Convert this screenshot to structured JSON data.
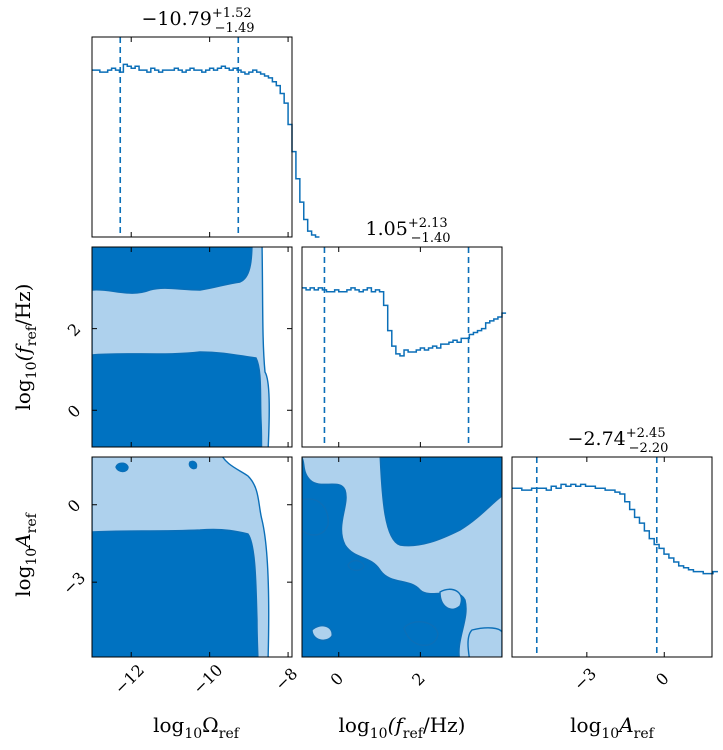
{
  "chart_data": {
    "type": "corner",
    "parameters": [
      {
        "key": "omega",
        "label": "log10Ωref",
        "label_base": "log",
        "label_sub": "10",
        "label_main": "Ω",
        "label_main_sub": "ref",
        "range": [
          -13,
          -7.9
        ],
        "ticks": [
          -12,
          -10,
          -8
        ]
      },
      {
        "key": "fref",
        "label": "log10(fref/Hz)",
        "label_base": "log",
        "label_sub": "10",
        "label_main": "(f",
        "label_main_sub": "ref",
        "label_tail": "/Hz)",
        "range": [
          -0.9,
          4.0
        ],
        "ticks": [
          0,
          2
        ]
      },
      {
        "key": "aref",
        "label": "log10Aref",
        "label_base": "log",
        "label_sub": "10",
        "label_main": "A",
        "label_main_sub": "ref",
        "range": [
          -5.9,
          1.85
        ],
        "ticks": [
          -3,
          0
        ]
      }
    ],
    "diag_titles": [
      {
        "median": "−10.79",
        "plus": "+1.52",
        "minus": "−1.49"
      },
      {
        "median": "1.05",
        "plus": "+2.13",
        "minus": "−1.40"
      },
      {
        "median": "−2.74",
        "plus": "+2.45",
        "minus": "−2.20"
      }
    ],
    "quantiles": [
      [
        -12.28,
        -9.27
      ],
      [
        -0.35,
        3.18
      ],
      [
        -4.94,
        -0.29
      ]
    ],
    "histograms": [
      {
        "start": -13,
        "step": 0.1,
        "values": [
          0.86,
          0.86,
          0.85,
          0.85,
          0.86,
          0.87,
          0.86,
          0.85,
          0.89,
          0.88,
          0.87,
          0.88,
          0.86,
          0.86,
          0.85,
          0.87,
          0.86,
          0.85,
          0.86,
          0.86,
          0.86,
          0.87,
          0.86,
          0.85,
          0.86,
          0.87,
          0.86,
          0.86,
          0.85,
          0.86,
          0.87,
          0.86,
          0.87,
          0.88,
          0.87,
          0.86,
          0.87,
          0.86,
          0.85,
          0.84,
          0.85,
          0.86,
          0.85,
          0.84,
          0.83,
          0.82,
          0.8,
          0.78,
          0.74,
          0.69,
          0.58,
          0.44,
          0.3,
          0.18,
          0.09,
          0.03,
          0.01,
          0.0
        ]
      },
      {
        "start": -0.9,
        "step": 0.1,
        "values": [
          0.82,
          0.81,
          0.82,
          0.81,
          0.82,
          0.81,
          0.8,
          0.8,
          0.81,
          0.8,
          0.8,
          0.81,
          0.82,
          0.81,
          0.8,
          0.81,
          0.82,
          0.8,
          0.81,
          0.8,
          0.73,
          0.6,
          0.52,
          0.48,
          0.47,
          0.5,
          0.49,
          0.49,
          0.5,
          0.51,
          0.5,
          0.51,
          0.52,
          0.51,
          0.53,
          0.53,
          0.54,
          0.55,
          0.54,
          0.56,
          0.56,
          0.58,
          0.59,
          0.6,
          0.61,
          0.64,
          0.65,
          0.66,
          0.67,
          0.69
        ]
      },
      {
        "start": -5.9,
        "step": 0.19,
        "values": [
          0.87,
          0.87,
          0.86,
          0.86,
          0.87,
          0.87,
          0.87,
          0.86,
          0.88,
          0.87,
          0.89,
          0.88,
          0.89,
          0.88,
          0.89,
          0.88,
          0.88,
          0.87,
          0.87,
          0.86,
          0.86,
          0.85,
          0.84,
          0.8,
          0.76,
          0.72,
          0.69,
          0.65,
          0.61,
          0.58,
          0.56,
          0.53,
          0.51,
          0.49,
          0.47,
          0.46,
          0.45,
          0.44,
          0.44,
          0.43,
          0.43,
          0.44
        ]
      }
    ],
    "contour_levels": [
      "inner",
      "outer"
    ],
    "colors": {
      "dark": "#0072c1",
      "light": "#aed1ed",
      "edge": "#0b6fb8"
    }
  }
}
